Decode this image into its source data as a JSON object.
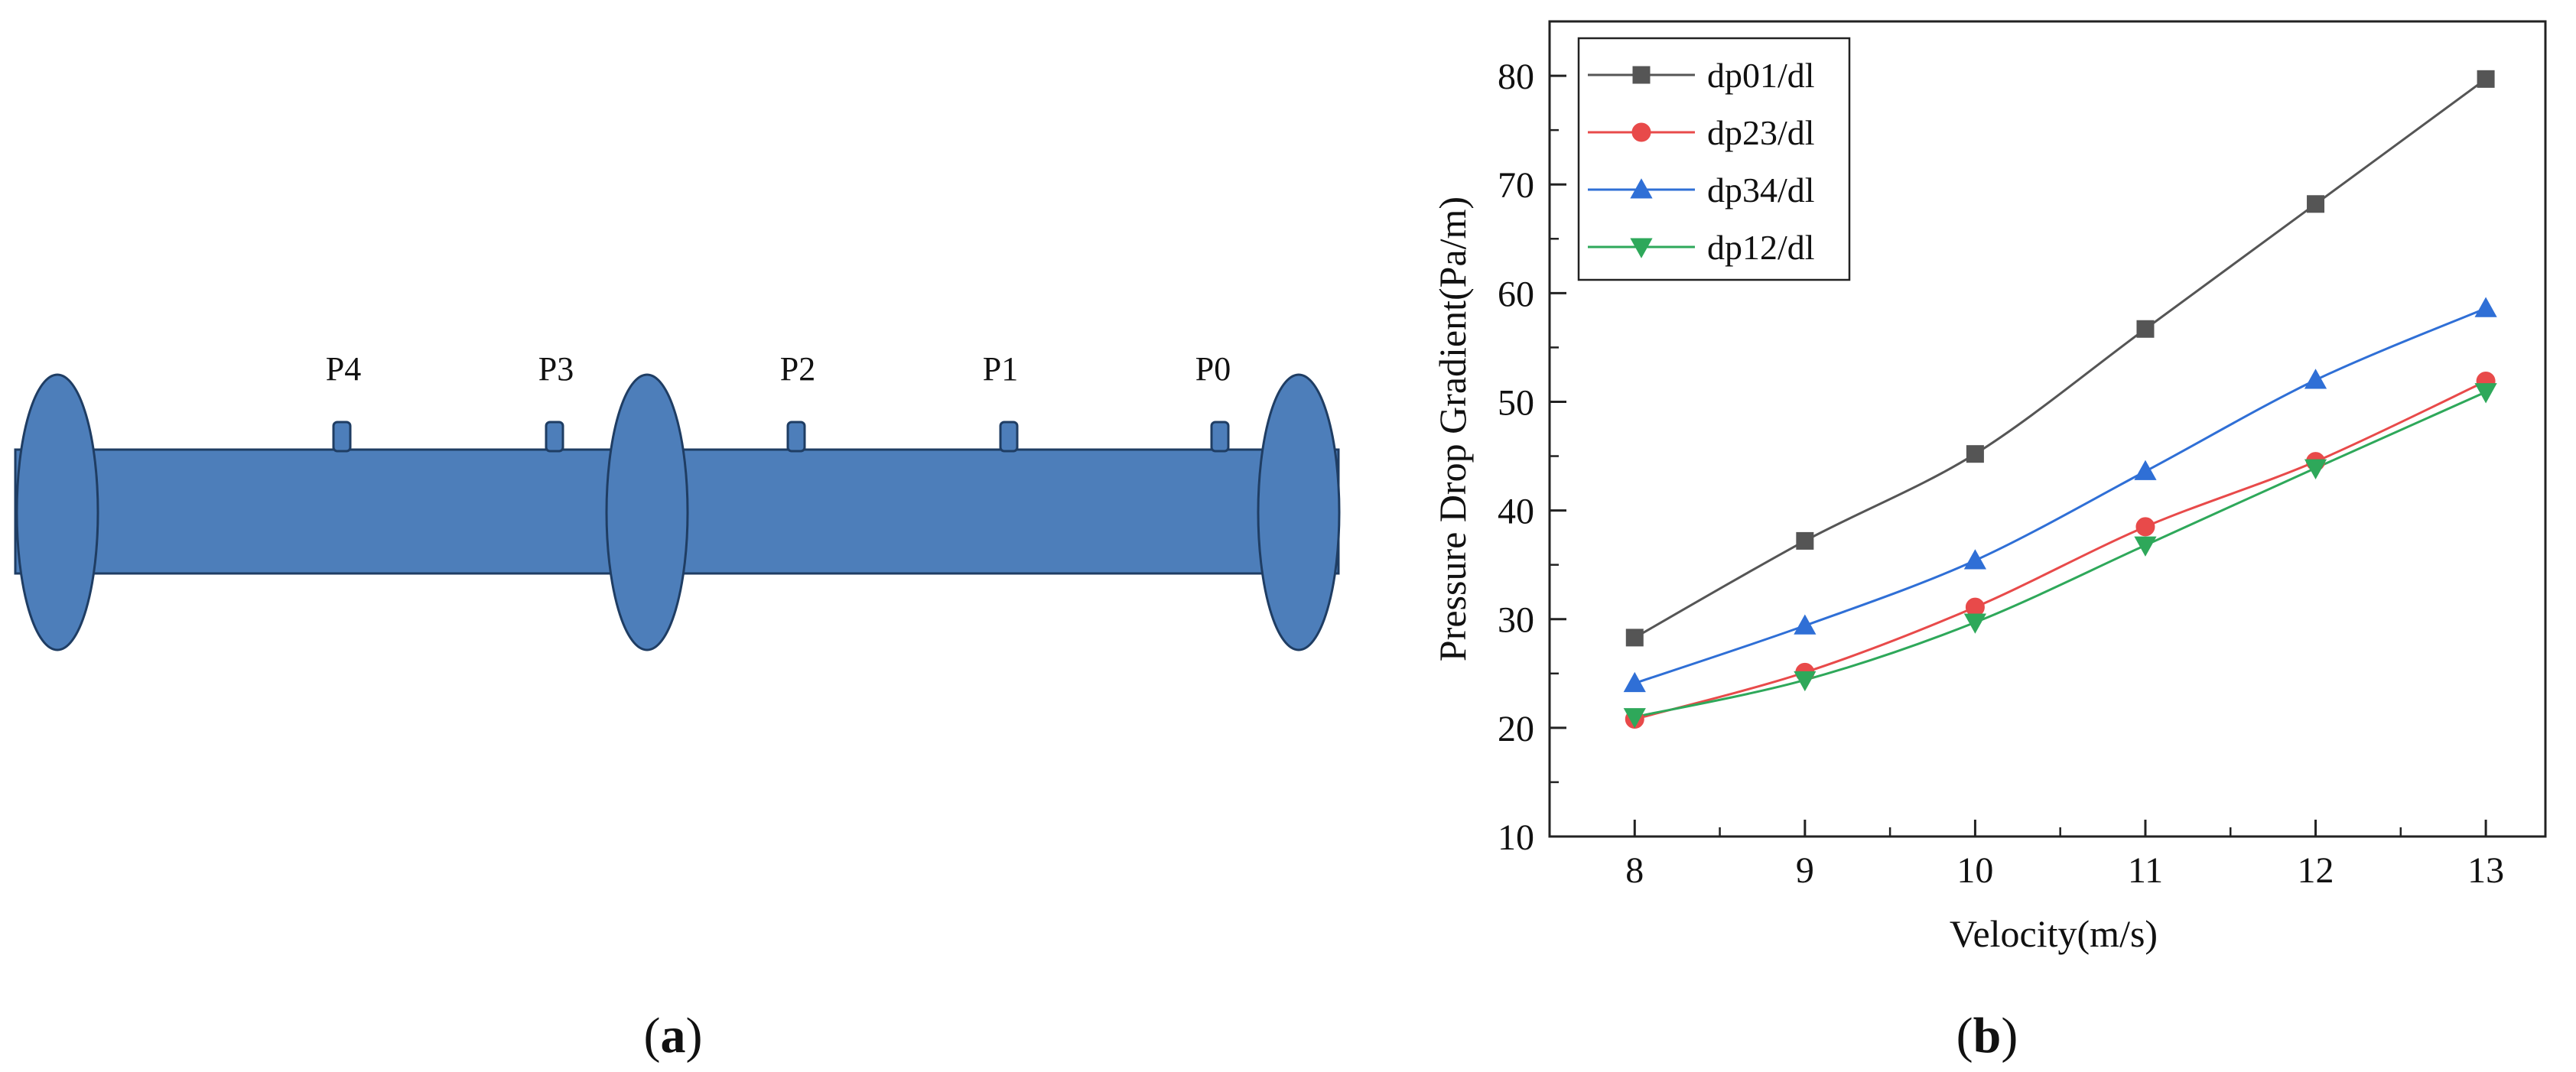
{
  "panel_a": {
    "panel_label": {
      "open": "(",
      "letter": "a",
      "close": ")"
    },
    "tap_labels": [
      "P4",
      "P3",
      "P2",
      "P1",
      "P0"
    ],
    "pipe_color": "#4D7EBA",
    "outline_color": "#1F3D63"
  },
  "panel_b": {
    "panel_label": {
      "open": "(",
      "letter": "b",
      "close": ")"
    }
  },
  "chart_data": {
    "type": "line",
    "xlabel": "Velocity(m/s)",
    "ylabel": "Pressure Drop Gradient(Pa/m)",
    "xlim": [
      7.5,
      13.35
    ],
    "ylim": [
      10,
      85
    ],
    "xticks": [
      8,
      9,
      10,
      11,
      12,
      13
    ],
    "yticks": [
      10,
      20,
      30,
      40,
      50,
      60,
      70,
      80
    ],
    "grid": false,
    "legend_position": "top-left",
    "x": [
      8,
      9,
      10,
      11,
      12,
      13
    ],
    "series": [
      {
        "name": "dp01/dl",
        "color": "#555555",
        "marker": "square",
        "values": [
          28.3,
          37.2,
          45.2,
          56.7,
          68.2,
          79.7
        ]
      },
      {
        "name": "dp23/dl",
        "color": "#E84A4A",
        "marker": "circle",
        "values": [
          20.8,
          25.1,
          31.1,
          38.5,
          44.5,
          51.9
        ]
      },
      {
        "name": "dp34/dl",
        "color": "#2F6FD6",
        "marker": "triangle-up",
        "values": [
          24.1,
          29.4,
          35.4,
          43.6,
          52.0,
          58.6
        ]
      },
      {
        "name": "dp12/dl",
        "color": "#2EA85A",
        "marker": "triangle-down",
        "values": [
          21.0,
          24.4,
          29.7,
          36.8,
          43.9,
          50.9
        ]
      }
    ]
  }
}
